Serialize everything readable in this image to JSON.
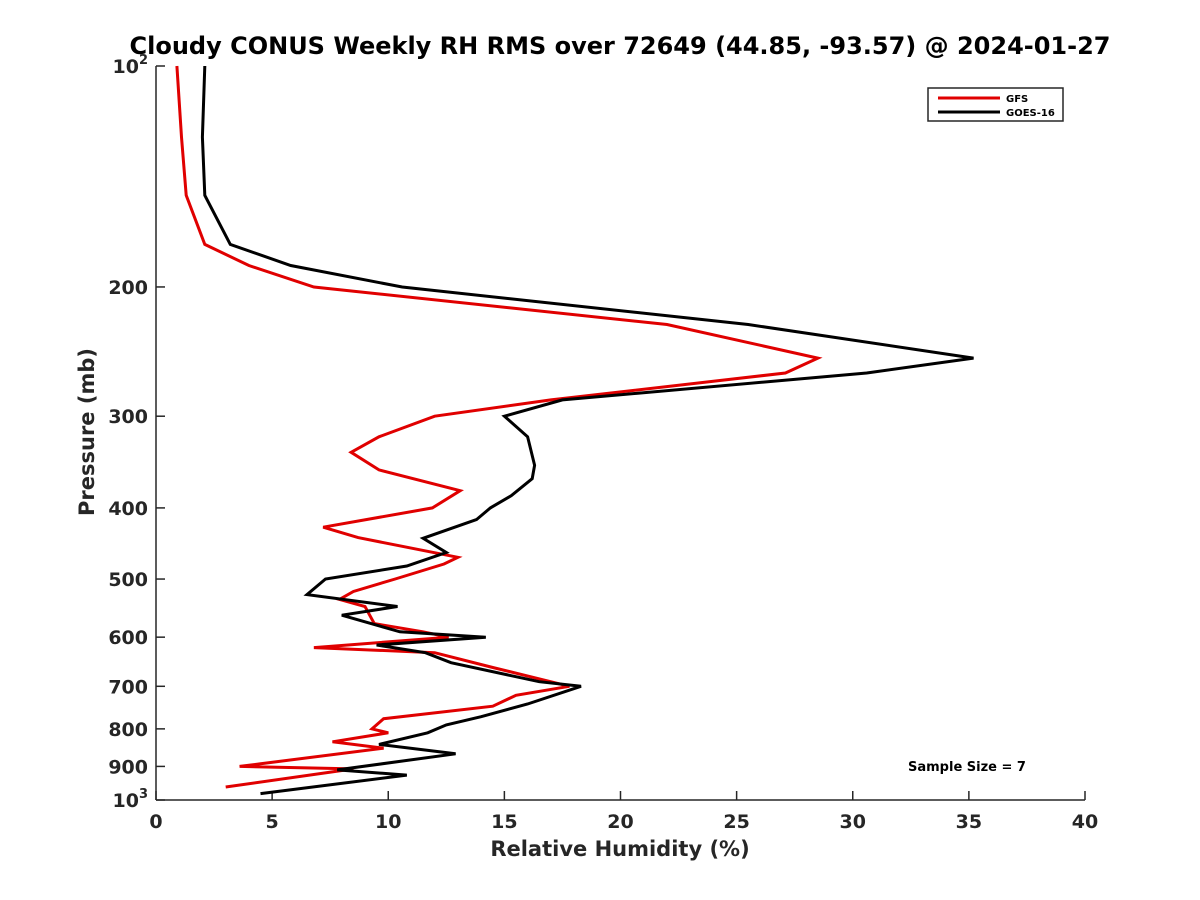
{
  "chart_data": {
    "type": "line",
    "title": "Cloudy CONUS Weekly RH RMS over 72649 (44.85, -93.57) @ 2024-01-27",
    "xlabel": "Relative Humidity (%)",
    "ylabel": "Pressure (mb)",
    "xlim": [
      0,
      40
    ],
    "ylim": [
      100,
      1000
    ],
    "y_scale": "log",
    "y_reversed": true,
    "grid": false,
    "legend_position": "top-right",
    "x_ticks": [
      0,
      5,
      10,
      15,
      20,
      25,
      30,
      35,
      40
    ],
    "y_ticks": [
      {
        "value": 100,
        "label": "10",
        "sup": "2"
      },
      {
        "value": 200,
        "label": "200",
        "sup": ""
      },
      {
        "value": 300,
        "label": "300",
        "sup": ""
      },
      {
        "value": 400,
        "label": "400",
        "sup": ""
      },
      {
        "value": 500,
        "label": "500",
        "sup": ""
      },
      {
        "value": 600,
        "label": "600",
        "sup": ""
      },
      {
        "value": 700,
        "label": "700",
        "sup": ""
      },
      {
        "value": 800,
        "label": "800",
        "sup": ""
      },
      {
        "value": 900,
        "label": "900",
        "sup": ""
      },
      {
        "value": 1000,
        "label": "10",
        "sup": "3"
      }
    ],
    "series": [
      {
        "name": "GFS",
        "color": "#e00000",
        "points": [
          [
            0.9,
            100
          ],
          [
            1.1,
            125
          ],
          [
            1.3,
            150
          ],
          [
            2.1,
            175
          ],
          [
            4.0,
            187
          ],
          [
            6.8,
            200
          ],
          [
            22.0,
            225
          ],
          [
            28.5,
            250
          ],
          [
            27.1,
            262
          ],
          [
            17.0,
            285
          ],
          [
            12.0,
            300
          ],
          [
            9.6,
            320
          ],
          [
            8.4,
            336
          ],
          [
            9.6,
            355
          ],
          [
            13.1,
            379
          ],
          [
            11.9,
            400
          ],
          [
            7.2,
            425
          ],
          [
            8.7,
            439
          ],
          [
            13.0,
            467
          ],
          [
            12.4,
            477
          ],
          [
            10.3,
            500
          ],
          [
            8.5,
            520
          ],
          [
            7.9,
            533
          ],
          [
            9.0,
            545
          ],
          [
            9.2,
            560
          ],
          [
            9.4,
            575
          ],
          [
            11.5,
            590
          ],
          [
            12.6,
            600
          ],
          [
            6.8,
            620
          ],
          [
            12.0,
            630
          ],
          [
            14.5,
            660
          ],
          [
            17.8,
            700
          ],
          [
            15.5,
            720
          ],
          [
            14.5,
            745
          ],
          [
            9.8,
            775
          ],
          [
            9.3,
            800
          ],
          [
            10.0,
            810
          ],
          [
            7.6,
            833
          ],
          [
            9.8,
            850
          ],
          [
            3.6,
            900
          ],
          [
            8.5,
            907
          ],
          [
            3.0,
            960
          ]
        ]
      },
      {
        "name": "GOES-16",
        "color": "#000000",
        "points": [
          [
            2.1,
            100
          ],
          [
            2.0,
            125
          ],
          [
            2.1,
            150
          ],
          [
            3.2,
            175
          ],
          [
            5.8,
            187
          ],
          [
            10.6,
            200
          ],
          [
            25.5,
            225
          ],
          [
            35.2,
            250
          ],
          [
            30.6,
            262
          ],
          [
            17.5,
            285
          ],
          [
            15.0,
            300
          ],
          [
            16.0,
            320
          ],
          [
            16.3,
            350
          ],
          [
            16.2,
            365
          ],
          [
            15.3,
            385
          ],
          [
            14.4,
            400
          ],
          [
            13.8,
            415
          ],
          [
            11.5,
            440
          ],
          [
            12.5,
            460
          ],
          [
            10.8,
            480
          ],
          [
            7.3,
            500
          ],
          [
            6.5,
            525
          ],
          [
            10.4,
            545
          ],
          [
            8.0,
            560
          ],
          [
            10.5,
            590
          ],
          [
            14.2,
            600
          ],
          [
            9.5,
            615
          ],
          [
            11.6,
            630
          ],
          [
            12.7,
            650
          ],
          [
            16.5,
            690
          ],
          [
            18.3,
            700
          ],
          [
            16.0,
            740
          ],
          [
            14.0,
            770
          ],
          [
            12.5,
            790
          ],
          [
            11.7,
            810
          ],
          [
            9.6,
            840
          ],
          [
            12.9,
            865
          ],
          [
            7.8,
            910
          ],
          [
            10.8,
            925
          ],
          [
            4.5,
            980
          ]
        ]
      }
    ],
    "annotation": "Sample Size = 7"
  }
}
